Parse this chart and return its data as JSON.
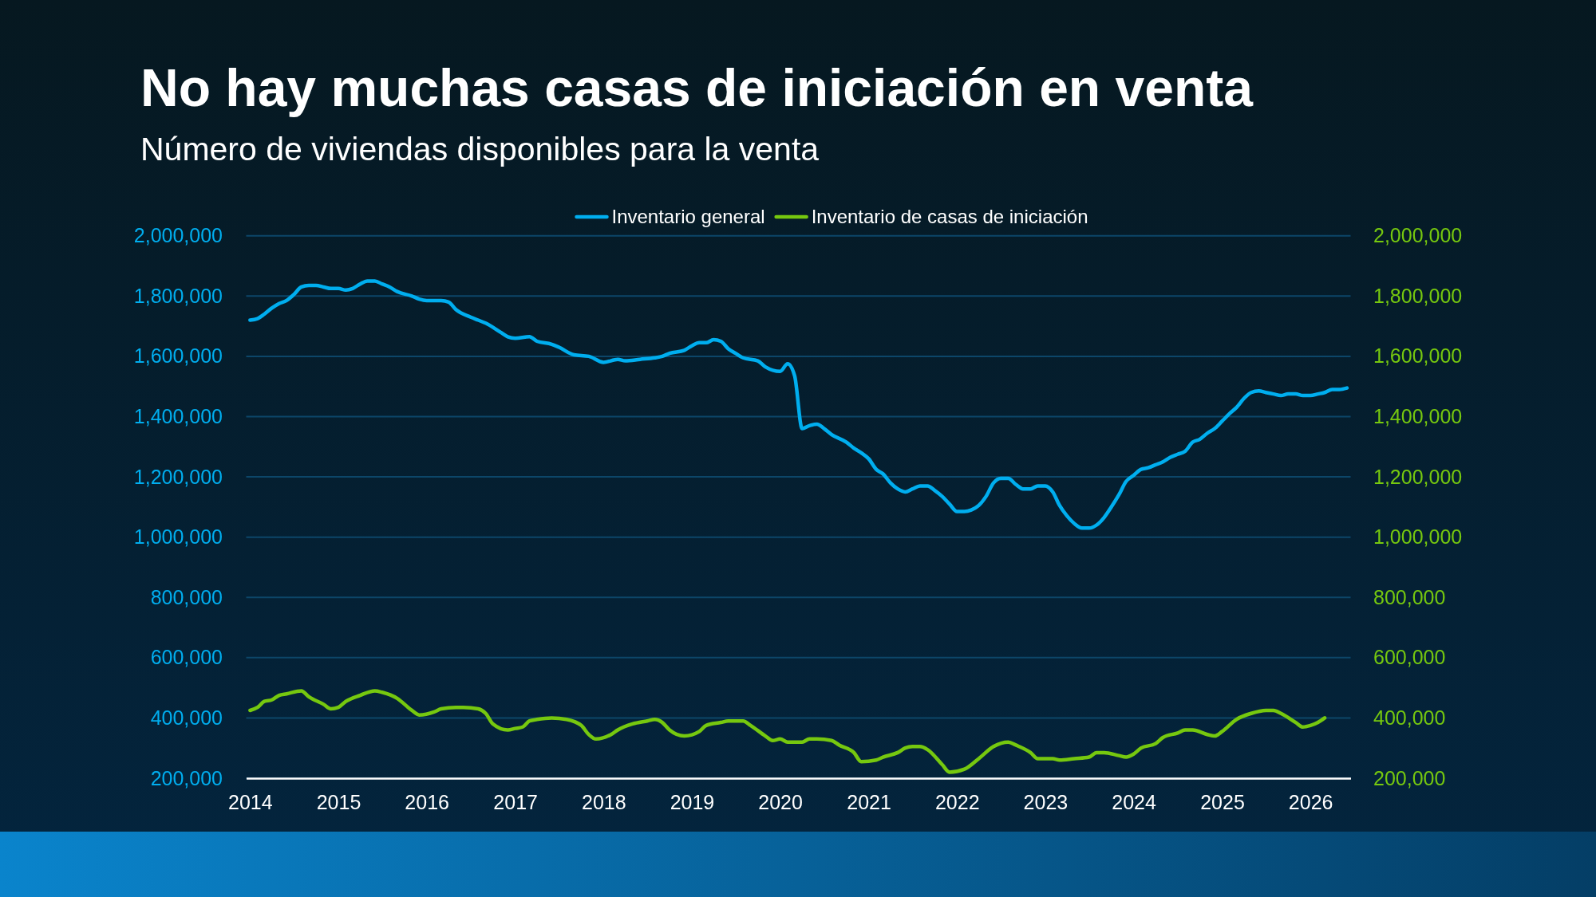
{
  "chart_data": {
    "type": "line",
    "title": "No hay muchas casas de iniciación en venta",
    "subtitle": "Número de viviendas disponibles para la venta",
    "xlim": [
      "2013-12-16",
      "2026-06-16"
    ],
    "xticks": [
      "2014",
      "2015",
      "2016",
      "2017",
      "2018",
      "2019",
      "2020",
      "2021",
      "2022",
      "2023",
      "2024",
      "2025",
      "2026"
    ],
    "ylim": [
      200000,
      2000000
    ],
    "yticks": [
      {
        "value": 200000,
        "label": "200,000"
      },
      {
        "value": 400000,
        "label": "400,000"
      },
      {
        "value": 600000,
        "label": "600,000"
      },
      {
        "value": 800000,
        "label": "800,000"
      },
      {
        "value": 1000000,
        "label": "1,000,000"
      },
      {
        "value": 1200000,
        "label": "1,200,000"
      },
      {
        "value": 1400000,
        "label": "1,400,000"
      },
      {
        "value": 1600000,
        "label": "1,600,000"
      },
      {
        "value": 1800000,
        "label": "1,800,000"
      },
      {
        "value": 2000000,
        "label": "2,000,000"
      }
    ],
    "y2lim": [
      200000,
      2000000
    ],
    "y2ticks": [
      {
        "value": 200000,
        "label": "200,000"
      },
      {
        "value": 400000,
        "label": "400,000"
      },
      {
        "value": 600000,
        "label": "600,000"
      },
      {
        "value": 800000,
        "label": "800,000"
      },
      {
        "value": 1000000,
        "label": "1,000,000"
      },
      {
        "value": 1200000,
        "label": "1,200,000"
      },
      {
        "value": 1400000,
        "label": "1,400,000"
      },
      {
        "value": 1600000,
        "label": "1,600,000"
      },
      {
        "value": 1800000,
        "label": "1,800,000"
      },
      {
        "value": 2000000,
        "label": "2,000,000"
      }
    ],
    "grid": "y",
    "legend": "top",
    "series": [
      {
        "name": "Inventario general",
        "color": "#00aeef",
        "x": [
          "2014-01",
          "2014-02",
          "2014-03",
          "2014-04",
          "2014-05",
          "2014-06",
          "2014-07",
          "2014-08",
          "2014-09",
          "2014-10",
          "2014-11",
          "2014-12",
          "2015-01",
          "2015-02",
          "2015-03",
          "2015-04",
          "2015-05",
          "2015-06",
          "2015-07",
          "2015-08",
          "2015-09",
          "2015-11",
          "2015-12",
          "2016-01",
          "2016-02",
          "2016-03",
          "2016-04",
          "2016-05",
          "2016-07",
          "2016-08",
          "2016-09",
          "2016-11",
          "2016-12",
          "2017-01",
          "2017-03",
          "2017-04",
          "2017-06",
          "2017-07",
          "2017-09",
          "2017-11",
          "2018-01",
          "2018-03",
          "2018-04",
          "2018-06",
          "2018-08",
          "2018-09",
          "2018-10",
          "2018-12",
          "2019-01",
          "2019-02",
          "2019-03",
          "2019-04",
          "2019-05",
          "2019-06",
          "2019-07",
          "2019-08",
          "2019-10",
          "2019-11",
          "2020-01",
          "2020-02",
          "2020-03",
          "2020-04",
          "2020-05",
          "2020-06",
          "2020-07",
          "2020-08",
          "2020-10",
          "2020-11",
          "2020-12",
          "2021-01",
          "2021-02",
          "2021-03",
          "2021-04",
          "2021-05",
          "2021-06",
          "2021-07",
          "2021-08",
          "2021-09",
          "2021-10",
          "2021-11",
          "2021-12",
          "2022-01",
          "2022-02",
          "2022-03",
          "2022-04",
          "2022-05",
          "2022-06",
          "2022-07",
          "2022-08",
          "2022-09",
          "2022-10",
          "2022-11",
          "2022-12",
          "2023-01",
          "2023-02",
          "2023-03",
          "2023-04",
          "2023-05",
          "2023-06",
          "2023-07",
          "2023-08",
          "2023-09",
          "2023-10",
          "2023-11",
          "2023-12",
          "2024-01",
          "2024-02",
          "2024-03",
          "2024-04",
          "2024-05",
          "2024-06",
          "2024-07",
          "2024-08",
          "2024-09",
          "2024-10",
          "2024-11",
          "2024-12",
          "2025-01",
          "2025-02",
          "2025-03",
          "2025-04",
          "2025-05",
          "2025-06",
          "2025-07",
          "2025-08",
          "2025-09",
          "2025-10",
          "2025-11",
          "2025-12",
          "2026-01",
          "2026-02",
          "2026-03",
          "2026-04",
          "2026-05",
          "2026-06"
        ],
        "values": [
          1720000,
          1725000,
          1740000,
          1760000,
          1775000,
          1785000,
          1805000,
          1830000,
          1835000,
          1835000,
          1830000,
          1825000,
          1825000,
          1820000,
          1825000,
          1840000,
          1850000,
          1850000,
          1840000,
          1830000,
          1815000,
          1800000,
          1790000,
          1785000,
          1785000,
          1785000,
          1780000,
          1755000,
          1730000,
          1720000,
          1710000,
          1680000,
          1665000,
          1660000,
          1665000,
          1650000,
          1640000,
          1630000,
          1605000,
          1600000,
          1580000,
          1590000,
          1585000,
          1590000,
          1595000,
          1600000,
          1610000,
          1620000,
          1635000,
          1645000,
          1645000,
          1655000,
          1650000,
          1625000,
          1610000,
          1595000,
          1585000,
          1565000,
          1550000,
          1575000,
          1535000,
          1360000,
          1370000,
          1375000,
          1360000,
          1340000,
          1315000,
          1295000,
          1280000,
          1260000,
          1225000,
          1210000,
          1180000,
          1160000,
          1150000,
          1160000,
          1170000,
          1170000,
          1155000,
          1135000,
          1110000,
          1085000,
          1085000,
          1090000,
          1105000,
          1135000,
          1180000,
          1195000,
          1195000,
          1175000,
          1160000,
          1160000,
          1170000,
          1170000,
          1150000,
          1105000,
          1070000,
          1045000,
          1030000,
          1030000,
          1040000,
          1065000,
          1100000,
          1140000,
          1185000,
          1205000,
          1225000,
          1230000,
          1240000,
          1250000,
          1265000,
          1275000,
          1285000,
          1315000,
          1325000,
          1345000,
          1360000,
          1385000,
          1410000,
          1430000,
          1460000,
          1480000,
          1485000,
          1480000,
          1475000,
          1470000,
          1475000,
          1475000,
          1470000,
          1470000,
          1475000,
          1480000,
          1490000,
          1490000,
          1495000
        ]
      },
      {
        "name": "Inventario de casas de iniciación",
        "color": "#76c80f",
        "axis": "y2",
        "x": [
          "2014-01",
          "2014-02",
          "2014-03",
          "2014-04",
          "2014-05",
          "2014-06",
          "2014-08",
          "2014-09",
          "2014-11",
          "2014-12",
          "2015-01",
          "2015-02",
          "2015-04",
          "2015-06",
          "2015-07",
          "2015-09",
          "2015-11",
          "2015-12",
          "2016-02",
          "2016-03",
          "2016-05",
          "2016-06",
          "2016-08",
          "2016-09",
          "2016-10",
          "2016-12",
          "2017-01",
          "2017-02",
          "2017-03",
          "2017-04",
          "2017-06",
          "2017-08",
          "2017-10",
          "2017-11",
          "2017-12",
          "2018-02",
          "2018-03",
          "2018-05",
          "2018-07",
          "2018-08",
          "2018-09",
          "2018-10",
          "2018-12",
          "2019-02",
          "2019-03",
          "2019-05",
          "2019-06",
          "2019-08",
          "2019-09",
          "2019-11",
          "2019-12",
          "2020-01",
          "2020-02",
          "2020-04",
          "2020-05",
          "2020-06",
          "2020-08",
          "2020-09",
          "2020-11",
          "2020-12",
          "2021-02",
          "2021-03",
          "2021-05",
          "2021-06",
          "2021-07",
          "2021-08",
          "2021-09",
          "2021-11",
          "2021-12",
          "2022-02",
          "2022-04",
          "2022-06",
          "2022-08",
          "2022-09",
          "2022-11",
          "2022-12",
          "2023-02",
          "2023-03",
          "2023-05",
          "2023-07",
          "2023-08",
          "2023-09",
          "2023-11",
          "2023-12",
          "2024-01",
          "2024-02",
          "2024-04",
          "2024-05",
          "2024-07",
          "2024-08",
          "2024-09",
          "2024-11",
          "2024-12",
          "2025-01",
          "2025-03",
          "2025-05",
          "2025-07",
          "2025-08",
          "2025-09",
          "2025-11",
          "2025-12",
          "2026-01",
          "2026-02",
          "2026-03"
        ],
        "values": [
          425000,
          435000,
          455000,
          460000,
          475000,
          480000,
          490000,
          470000,
          445000,
          430000,
          435000,
          455000,
          475000,
          490000,
          485000,
          465000,
          425000,
          410000,
          420000,
          430000,
          435000,
          435000,
          430000,
          415000,
          380000,
          360000,
          365000,
          370000,
          390000,
          395000,
          400000,
          395000,
          375000,
          345000,
          330000,
          345000,
          360000,
          380000,
          390000,
          395000,
          385000,
          360000,
          340000,
          355000,
          375000,
          385000,
          390000,
          390000,
          375000,
          340000,
          325000,
          330000,
          320000,
          320000,
          330000,
          330000,
          325000,
          310000,
          285000,
          255000,
          260000,
          270000,
          285000,
          300000,
          305000,
          305000,
          295000,
          245000,
          220000,
          230000,
          265000,
          305000,
          320000,
          310000,
          285000,
          265000,
          265000,
          260000,
          265000,
          270000,
          285000,
          285000,
          275000,
          270000,
          280000,
          300000,
          315000,
          335000,
          350000,
          360000,
          360000,
          345000,
          340000,
          355000,
          395000,
          415000,
          425000,
          425000,
          415000,
          385000,
          370000,
          375000,
          385000,
          400000
        ]
      }
    ]
  }
}
